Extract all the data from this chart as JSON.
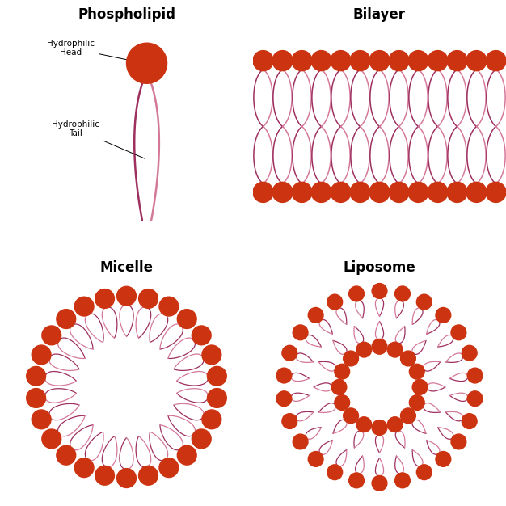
{
  "bg_color": "#ffffff",
  "head_color": "#cc3311",
  "tail_color_light": "#d4789a",
  "tail_color_dark": "#9e3060",
  "title_fontsize": 12,
  "label_fontsize": 7.5,
  "titles": {
    "phospholipid": "Phospholipid",
    "bilayer": "Bilayer",
    "micelle": "Micelle",
    "liposome": "Liposome"
  },
  "head_label": "Hydrophilic\nHead",
  "tail_label": "Hydrophilic\nTail",
  "n_bilayer": 13,
  "n_micelle": 26,
  "n_liposome_outer": 26,
  "n_liposome_inner": 16
}
